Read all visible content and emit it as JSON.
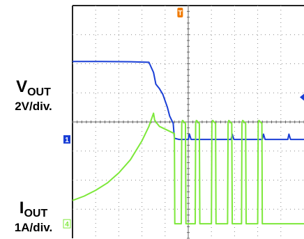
{
  "chart_data": {
    "type": "line",
    "title": "",
    "xlabel": "",
    "ylabel": "",
    "grid": true,
    "x_divisions": 10,
    "y_divisions": 8,
    "channels": [
      {
        "name": "VOUT",
        "label_main": "V",
        "label_sub": "OUT",
        "scale": "2V/div.",
        "marker": "1",
        "color": "#1a3fd6",
        "offset_div": 3.4,
        "x": [
          0,
          1.2,
          2.5,
          3.3,
          3.5,
          3.6,
          3.75,
          3.9,
          4.1,
          4.2,
          4.35,
          4.4,
          4.6,
          5.0,
          5.05,
          5.12,
          5.4,
          5.8,
          6.2,
          6.5,
          6.85,
          6.9,
          6.97,
          7.4,
          8.2,
          8.25,
          8.32,
          8.7,
          9.3,
          9.35,
          9.42,
          10.0
        ],
        "y": [
          2.68,
          2.68,
          2.67,
          2.65,
          2.3,
          1.9,
          1.75,
          1.55,
          1.1,
          0.8,
          0.55,
          0.04,
          0.0,
          0.0,
          0.18,
          0.0,
          0.0,
          0.0,
          0.0,
          0.0,
          0.0,
          0.18,
          0.0,
          0.0,
          0.0,
          0.18,
          0.0,
          0.0,
          0.0,
          0.18,
          0.0,
          0.0
        ]
      },
      {
        "name": "IOUT",
        "label_main": "I",
        "label_sub": "OUT",
        "scale": "1A/div.",
        "marker": "4",
        "color": "#7de83a",
        "offset_div": 0.5,
        "x": [
          0,
          0.5,
          1.0,
          1.5,
          2.0,
          2.5,
          3.0,
          3.3,
          3.5,
          3.55,
          3.75,
          4.4,
          4.41,
          4.42,
          4.5,
          4.7,
          4.72,
          4.75,
          4.88,
          4.9,
          5.3,
          5.32,
          5.35,
          5.48,
          5.5,
          6.0,
          6.02,
          6.05,
          6.18,
          6.2,
          6.7,
          6.72,
          6.75,
          6.88,
          6.9,
          7.3,
          7.32,
          7.35,
          7.48,
          7.5,
          8.0,
          8.02,
          8.05,
          8.18,
          8.2,
          8.7,
          8.72,
          8.75,
          8.88,
          8.9,
          10.0
        ],
        "y": [
          0.8,
          0.95,
          1.15,
          1.4,
          1.75,
          2.2,
          2.85,
          3.35,
          3.8,
          3.55,
          3.35,
          3.1,
          1.6,
          0.0,
          0.0,
          0.0,
          3.45,
          3.55,
          3.45,
          0.0,
          0.0,
          3.45,
          3.55,
          3.45,
          0.0,
          0.0,
          3.45,
          3.55,
          3.45,
          0.0,
          0.0,
          3.45,
          3.55,
          3.45,
          0.0,
          0.0,
          3.45,
          3.55,
          3.45,
          0.0,
          0.0,
          3.45,
          3.55,
          3.45,
          0.0,
          0.0,
          0.0,
          0.0,
          0.0,
          0.0,
          0.0
        ]
      }
    ],
    "trigger_marker": "T",
    "trigger_color": "#f07a00"
  }
}
